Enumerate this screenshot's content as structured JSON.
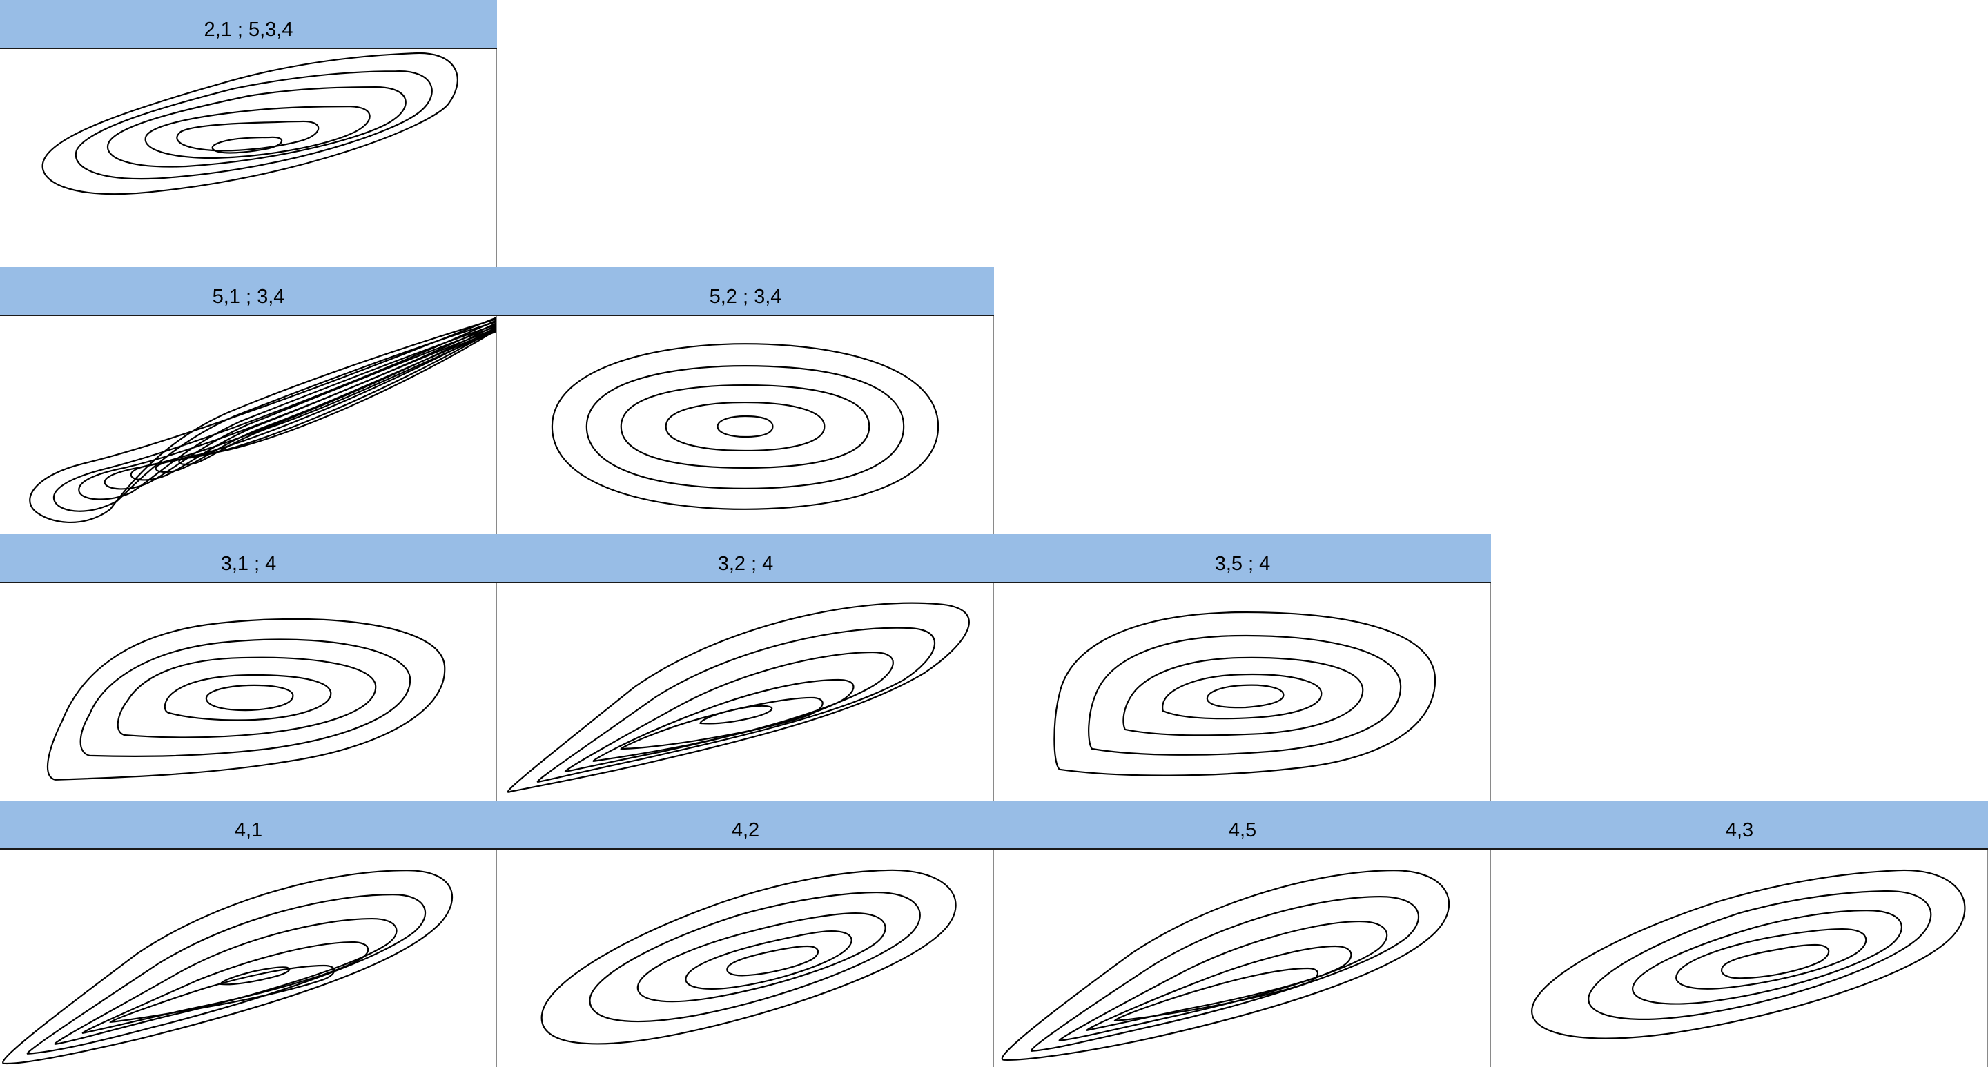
{
  "panels": [
    {
      "id": "p21",
      "label": "2,1 ; 5,3,4"
    },
    {
      "id": "p51",
      "label": "5,1 ; 3,4"
    },
    {
      "id": "p52",
      "label": "5,2 ; 3,4"
    },
    {
      "id": "p31",
      "label": "3,1 ; 4"
    },
    {
      "id": "p32",
      "label": "3,2 ; 4"
    },
    {
      "id": "p35",
      "label": "3,5 ; 4"
    },
    {
      "id": "p41",
      "label": "4,1"
    },
    {
      "id": "p42",
      "label": "4,2"
    },
    {
      "id": "p45",
      "label": "4,5"
    },
    {
      "id": "p43",
      "label": "4,3"
    }
  ]
}
